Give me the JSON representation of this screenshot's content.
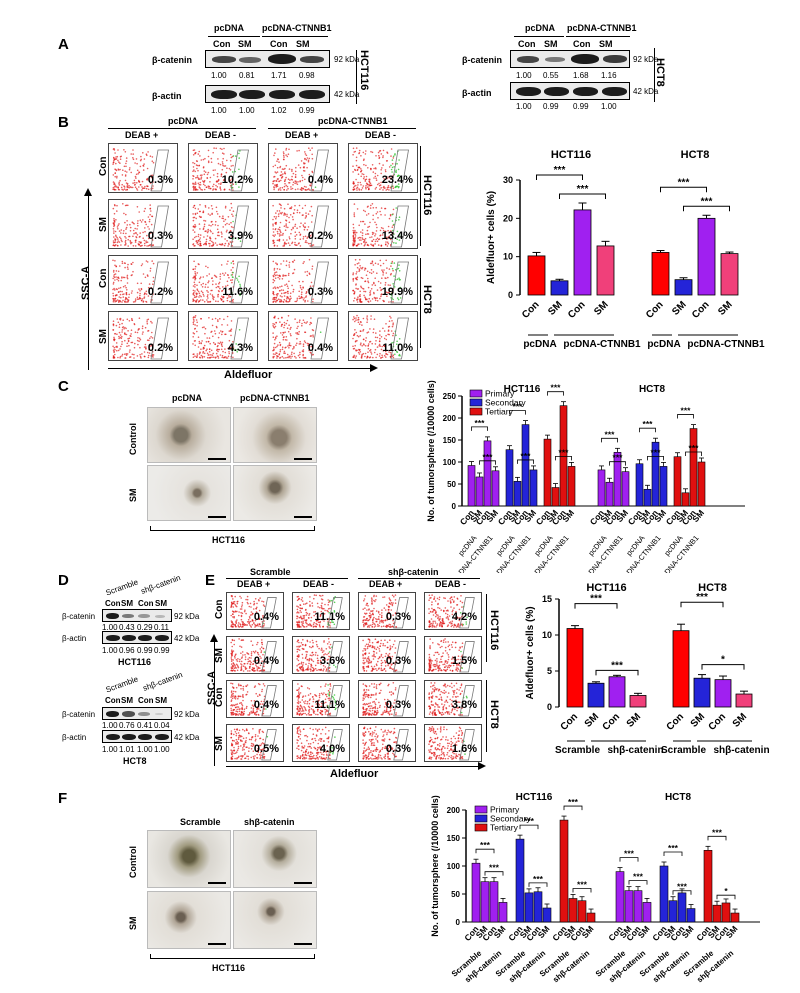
{
  "panels": {
    "A": "A",
    "B": "B",
    "C": "C",
    "D": "D",
    "E": "E",
    "F": "F"
  },
  "panelA": {
    "groups": [
      "pcDNA",
      "pcDNA-CTNNB1"
    ],
    "lanes": [
      "Con",
      "SM",
      "Con",
      "SM"
    ],
    "bcat": "β-catenin",
    "bactin": "β-actin",
    "kda92": "92 kDa",
    "kda42": "42 kDa",
    "left": {
      "cell": "HCT116",
      "bcat_vals": [
        "1.00",
        "0.81",
        "1.71",
        "0.98"
      ],
      "actin_vals": [
        "1.00",
        "1.00",
        "1.02",
        "0.99"
      ]
    },
    "right": {
      "cell": "HCT8",
      "bcat_vals": [
        "1.00",
        "0.55",
        "1.68",
        "1.16"
      ],
      "actin_vals": [
        "1.00",
        "0.99",
        "0.99",
        "1.00"
      ]
    }
  },
  "panelB": {
    "groups": [
      "pcDNA",
      "pcDNA-CTNNB1"
    ],
    "cols": [
      "DEAB +",
      "DEAB -",
      "DEAB +",
      "DEAB -"
    ],
    "rows": [
      "Con",
      "SM",
      "Con",
      "SM"
    ],
    "cells": [
      "HCT116",
      "HCT8"
    ],
    "pcts": [
      [
        "0.3%",
        "10.2%",
        "0.4%",
        "23.4%"
      ],
      [
        "0.3%",
        "3.9%",
        "0.2%",
        "13.4%"
      ],
      [
        "0.2%",
        "11.6%",
        "0.3%",
        "19.9%"
      ],
      [
        "0.2%",
        "4.3%",
        "0.4%",
        "11.0%"
      ]
    ],
    "yaxis": "SSC-A",
    "xaxis": "Aldefluor",
    "ticks_y": [
      "250",
      "200",
      "150",
      "100",
      "50",
      "0"
    ],
    "ticks_x": [
      "10⁰",
      "10¹",
      "10²",
      "10³",
      "10⁴",
      "10⁵"
    ]
  },
  "panelC": {
    "cols": [
      "pcDNA",
      "pcDNA-CTNNB1"
    ],
    "rows": [
      "Control",
      "SM"
    ],
    "cell": "HCT116"
  },
  "panelD": {
    "groups": [
      "Scramble",
      "shβ-catenin"
    ],
    "lanes": [
      "Con",
      "SM",
      "Con",
      "SM"
    ],
    "bcat": "β-catenin",
    "bactin": "β-actin",
    "kda92": "92 kDa",
    "kda42": "42 kDa",
    "top": {
      "cell": "HCT116",
      "bcat_vals": [
        "1.00",
        "0.43",
        "0.29",
        "0.11"
      ],
      "actin_vals": [
        "1.00",
        "0.96",
        "0.99",
        "0.99"
      ]
    },
    "bottom": {
      "cell": "HCT8",
      "bcat_vals": [
        "1.00",
        "0.76",
        "0.41",
        "0.04"
      ],
      "actin_vals": [
        "1.00",
        "1.01",
        "1.00",
        "1.00"
      ]
    }
  },
  "panelE": {
    "groups": [
      "Scramble",
      "shβ-catenin"
    ],
    "cols": [
      "DEAB +",
      "DEAB -",
      "DEAB +",
      "DEAB -"
    ],
    "rows": [
      "Con",
      "SM",
      "Con",
      "SM"
    ],
    "cells": [
      "HCT116",
      "HCT8"
    ],
    "pcts": [
      [
        "0.4%",
        "11.1%",
        "0.3%",
        "4.2%"
      ],
      [
        "0.4%",
        "3.6%",
        "0.3%",
        "1.5%"
      ],
      [
        "0.4%",
        "11.1%",
        "0.3%",
        "3.8%"
      ],
      [
        "0.5%",
        "4.0%",
        "0.3%",
        "1.6%"
      ]
    ],
    "yaxis": "SSC-A",
    "xaxis": "Aldefluor"
  },
  "panelF": {
    "cols": [
      "Scramble",
      "shβ-catenin"
    ],
    "rows": [
      "Control",
      "SM"
    ],
    "cell": "HCT116"
  },
  "chart_data": [
    {
      "id": "B",
      "type": "bar",
      "ylabel": "Aldefluor+ cells (%)",
      "ylim": [
        0,
        30
      ],
      "yticks": [
        "0",
        "10",
        "20",
        "30"
      ],
      "groups": [
        {
          "name": "HCT116",
          "categories": [
            "Con",
            "SM",
            "Con",
            "SM"
          ],
          "values": [
            10.2,
            3.7,
            22.2,
            12.8
          ],
          "errors": [
            0.9,
            0.4,
            1.8,
            1.2
          ]
        },
        {
          "name": "HCT8",
          "categories": [
            "Con",
            "SM",
            "Con",
            "SM"
          ],
          "values": [
            11.1,
            4.0,
            20.0,
            10.8
          ],
          "errors": [
            0.5,
            0.5,
            0.8,
            0.4
          ]
        }
      ],
      "group_labels": [
        "pcDNA",
        "pcDNA-CTNNB1"
      ],
      "significance": [
        "***",
        "***",
        "***",
        "***"
      ],
      "colors": [
        "#ff0000",
        "#2424d8",
        "#a020f0",
        "#f0407a"
      ]
    },
    {
      "id": "C",
      "type": "bar",
      "ylabel": "No. of tumorsphere (/10000 cells)",
      "ylim": [
        0,
        250
      ],
      "yticks": [
        "0",
        "50",
        "100",
        "150",
        "200",
        "250"
      ],
      "legend": [
        "Primary",
        "Secondary",
        "Tertiary"
      ],
      "colors": [
        "#a020f0",
        "#2424d8",
        "#e01010"
      ],
      "groups": [
        {
          "name": "HCT116",
          "series": [
            {
              "name": "Primary",
              "values": [
                92,
                66,
                148,
                80
              ]
            },
            {
              "name": "Secondary",
              "values": [
                128,
                56,
                185,
                82
              ]
            },
            {
              "name": "Tertiary",
              "values": [
                152,
                42,
                228,
                90
              ]
            }
          ]
        },
        {
          "name": "HCT8",
          "series": [
            {
              "name": "Primary",
              "values": [
                82,
                54,
                122,
                78
              ]
            },
            {
              "name": "Secondary",
              "values": [
                96,
                38,
                145,
                90
              ]
            },
            {
              "name": "Tertiary",
              "values": [
                112,
                30,
                176,
                100
              ]
            }
          ]
        }
      ],
      "categories": [
        "Con",
        "SM",
        "Con",
        "SM"
      ],
      "cat_labels": [
        "pcDNA",
        "pcDNA-CTNNB1",
        "pcDNA",
        "pcDNA-CTNNB1",
        "pcDNA",
        "pcDNA-CTNNB1"
      ],
      "significance": "***"
    },
    {
      "id": "E",
      "type": "bar",
      "ylabel": "Aldefluor+ cells (%)",
      "ylim": [
        0,
        15
      ],
      "yticks": [
        "0",
        "5",
        "10",
        "15"
      ],
      "groups": [
        {
          "name": "HCT116",
          "categories": [
            "Con",
            "SM",
            "Con",
            "SM"
          ],
          "values": [
            10.9,
            3.3,
            4.2,
            1.6
          ],
          "errors": [
            0.4,
            0.2,
            0.2,
            0.3
          ]
        },
        {
          "name": "HCT8",
          "categories": [
            "Con",
            "SM",
            "Con",
            "SM"
          ],
          "values": [
            10.6,
            4.0,
            3.8,
            1.8
          ],
          "errors": [
            0.9,
            0.5,
            0.5,
            0.4
          ]
        }
      ],
      "group_labels": [
        "Scramble",
        "shβ-catenin"
      ],
      "significance": [
        "***",
        "***",
        "***",
        "*"
      ],
      "colors": [
        "#ff0000",
        "#2424d8",
        "#a020f0",
        "#f0407a"
      ]
    },
    {
      "id": "F",
      "type": "bar",
      "ylabel": "No. of tumorsphere (/10000 cells)",
      "ylim": [
        0,
        200
      ],
      "yticks": [
        "0",
        "50",
        "100",
        "150",
        "200"
      ],
      "legend": [
        "Primary",
        "Secondary",
        "Tertiary"
      ],
      "colors": [
        "#a020f0",
        "#2424d8",
        "#e01010"
      ],
      "groups": [
        {
          "name": "HCT116",
          "series": [
            {
              "name": "Primary",
              "values": [
                105,
                72,
                72,
                35
              ]
            },
            {
              "name": "Secondary",
              "values": [
                148,
                52,
                54,
                25
              ]
            },
            {
              "name": "Tertiary",
              "values": [
                182,
                42,
                38,
                16
              ]
            }
          ]
        },
        {
          "name": "HCT8",
          "series": [
            {
              "name": "Primary",
              "values": [
                90,
                56,
                56,
                35
              ]
            },
            {
              "name": "Secondary",
              "values": [
                100,
                38,
                52,
                24
              ]
            },
            {
              "name": "Tertiary",
              "values": [
                128,
                30,
                34,
                16
              ]
            }
          ]
        }
      ],
      "categories": [
        "Con",
        "SM",
        "Con",
        "SM"
      ],
      "cat_labels": [
        "Scramble",
        "shβ-catenin"
      ],
      "significance": [
        "***",
        "***",
        "*"
      ]
    }
  ]
}
